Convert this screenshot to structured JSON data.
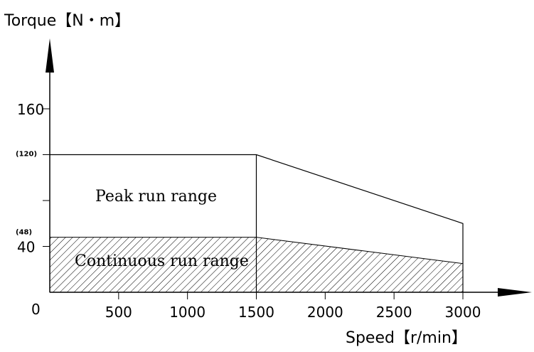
{
  "chart_data": {
    "type": "area",
    "xlabel": "Speed【r/min】",
    "ylabel": "Torque【N・m】",
    "origin_label": "0",
    "x_ticks": [
      500,
      1000,
      1500,
      2000,
      2500,
      3000
    ],
    "y_ticks": [
      {
        "value": 40,
        "label": "40"
      },
      {
        "value": 48,
        "label": "(48)"
      },
      {
        "value": 80,
        "label": ""
      },
      {
        "value": 120,
        "label": "(120)"
      },
      {
        "value": 160,
        "label": "160"
      }
    ],
    "xlim": [
      0,
      3000
    ],
    "ylim": [
      0,
      160
    ],
    "grid": false,
    "series": [
      {
        "name": "Peak run range",
        "x": [
          0,
          1500,
          3000
        ],
        "y": [
          120,
          120,
          60
        ],
        "fill": "none"
      },
      {
        "name": "Continuous run range",
        "x": [
          0,
          1500,
          3000
        ],
        "y": [
          48,
          48,
          25
        ],
        "fill": "hatched"
      }
    ]
  }
}
